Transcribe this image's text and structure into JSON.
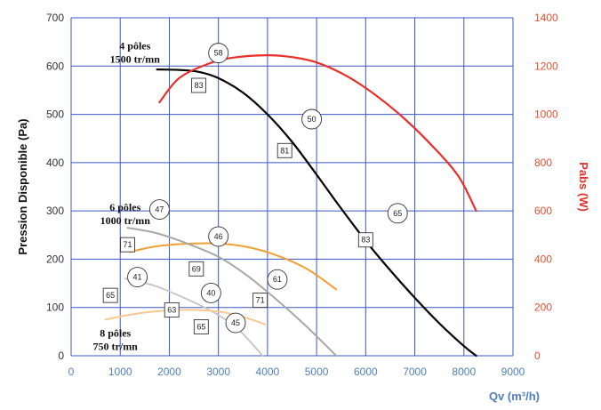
{
  "chart_data": {
    "type": "line",
    "title": "",
    "xlabel": "Qv (m³/h)",
    "ylabel_left": "Pression Disponible (Pa)",
    "ylabel_right": "Pabs (W)",
    "xlim": [
      0,
      9000
    ],
    "ylim_left": [
      0,
      700
    ],
    "ylim_right": [
      0,
      1400
    ],
    "x_ticks": [
      0,
      1000,
      2000,
      3000,
      4000,
      5000,
      6000,
      7000,
      8000,
      9000
    ],
    "y_ticks_left": [
      0,
      100,
      200,
      300,
      400,
      500,
      600,
      700
    ],
    "y_ticks_right": [
      0,
      200,
      400,
      600,
      800,
      1000,
      1200,
      1400
    ],
    "grid": true,
    "colors": {
      "grid": "#3c56c8",
      "pressure_4p": "#000000",
      "power_4p": "#e8302a",
      "power_6p": "#f0a030",
      "pressure_6p": "#a8a8a8",
      "pressure_8p": "#c8c8c8",
      "power_8p": "#f8c890",
      "right_axis": "#e8502f",
      "x_axis": "#4f7fbf"
    },
    "series": [
      {
        "key": "pressure_4p",
        "axis": "left",
        "points": [
          [
            1750,
            593
          ],
          [
            2200,
            592
          ],
          [
            2600,
            588
          ],
          [
            3000,
            575
          ],
          [
            3500,
            545
          ],
          [
            4000,
            500
          ],
          [
            4500,
            443
          ],
          [
            5000,
            375
          ],
          [
            5500,
            305
          ],
          [
            6000,
            238
          ],
          [
            6500,
            177
          ],
          [
            7000,
            120
          ],
          [
            7500,
            67
          ],
          [
            8000,
            20
          ],
          [
            8250,
            0
          ]
        ]
      },
      {
        "key": "power_4p",
        "axis": "right",
        "points": [
          [
            1800,
            1050
          ],
          [
            2200,
            1150
          ],
          [
            2800,
            1210
          ],
          [
            3300,
            1235
          ],
          [
            4000,
            1245
          ],
          [
            4500,
            1237
          ],
          [
            5000,
            1215
          ],
          [
            5600,
            1160
          ],
          [
            6200,
            1080
          ],
          [
            6800,
            980
          ],
          [
            7400,
            860
          ],
          [
            7900,
            740
          ],
          [
            8250,
            600
          ]
        ]
      },
      {
        "key": "power_6p",
        "axis": "right",
        "points": [
          [
            1200,
            430
          ],
          [
            1700,
            452
          ],
          [
            2300,
            463
          ],
          [
            3000,
            465
          ],
          [
            3600,
            450
          ],
          [
            4200,
            415
          ],
          [
            4800,
            360
          ],
          [
            5400,
            275
          ]
        ]
      },
      {
        "key": "pressure_6p",
        "axis": "left",
        "points": [
          [
            1150,
            265
          ],
          [
            1700,
            255
          ],
          [
            2300,
            235
          ],
          [
            3000,
            205
          ],
          [
            3600,
            165
          ],
          [
            4200,
            115
          ],
          [
            4800,
            60
          ],
          [
            5400,
            0
          ]
        ]
      },
      {
        "key": "pressure_8p",
        "axis": "left",
        "points": [
          [
            1100,
            160
          ],
          [
            1700,
            145
          ],
          [
            2300,
            120
          ],
          [
            2900,
            90
          ],
          [
            3400,
            55
          ],
          [
            3900,
            0
          ]
        ]
      },
      {
        "key": "power_8p",
        "axis": "right",
        "points": [
          [
            700,
            150
          ],
          [
            1200,
            170
          ],
          [
            1800,
            185
          ],
          [
            2500,
            190
          ],
          [
            3100,
            180
          ],
          [
            3600,
            155
          ],
          [
            3950,
            130
          ]
        ]
      }
    ],
    "speed_labels": [
      {
        "lines": [
          "4 pôles",
          "1500 tr/mn"
        ],
        "x": 1300,
        "y": 635
      },
      {
        "lines": [
          "6 pôles",
          "1000 tr/mn"
        ],
        "x": 1100,
        "y": 300
      },
      {
        "lines": [
          "8 pôles",
          "750 tr/mn"
        ],
        "x": 900,
        "y": 40
      }
    ],
    "box_labels": [
      {
        "text": "83",
        "x": 2600,
        "y": 560
      },
      {
        "text": "81",
        "x": 4350,
        "y": 425
      },
      {
        "text": "83",
        "x": 6000,
        "y": 240
      },
      {
        "text": "71",
        "x": 1150,
        "y": 230
      },
      {
        "text": "69",
        "x": 2550,
        "y": 180
      },
      {
        "text": "71",
        "x": 3850,
        "y": 115
      },
      {
        "text": "65",
        "x": 800,
        "y": 125
      },
      {
        "text": "63",
        "x": 2050,
        "y": 95
      },
      {
        "text": "65",
        "x": 2650,
        "y": 60
      }
    ],
    "circle_labels": [
      {
        "text": "58",
        "x": 3000,
        "y": 627
      },
      {
        "text": "50",
        "x": 4900,
        "y": 490
      },
      {
        "text": "65",
        "x": 6650,
        "y": 295
      },
      {
        "text": "47",
        "x": 1800,
        "y": 303
      },
      {
        "text": "46",
        "x": 3000,
        "y": 247
      },
      {
        "text": "41",
        "x": 1350,
        "y": 163
      },
      {
        "text": "61",
        "x": 4200,
        "y": 158
      },
      {
        "text": "40",
        "x": 2850,
        "y": 130
      },
      {
        "text": "45",
        "x": 3350,
        "y": 68
      }
    ]
  }
}
